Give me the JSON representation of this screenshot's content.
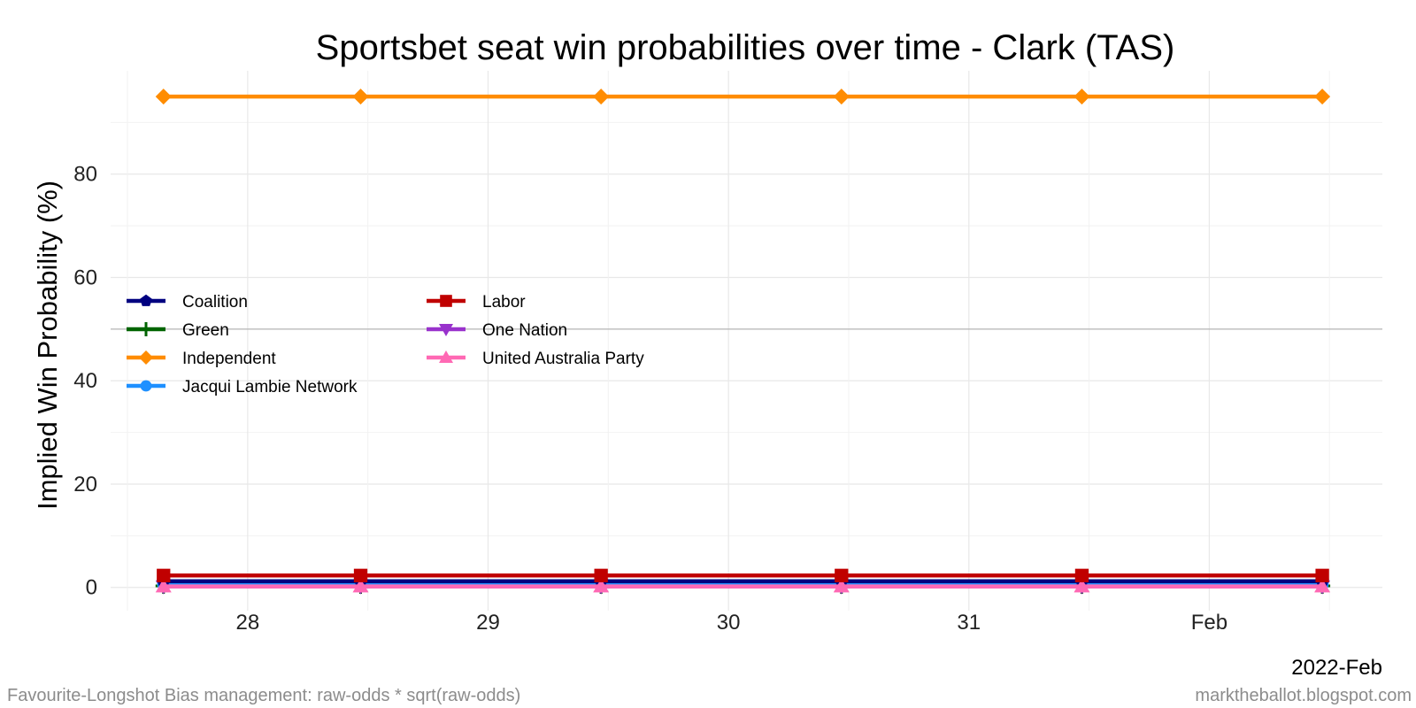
{
  "chart_data": {
    "type": "line",
    "title": "Sportsbet seat win probabilities over time - Clark (TAS)",
    "xlabel": "",
    "ylabel": "Implied Win Probability (%)",
    "x_period_label": "2022-Feb",
    "x_ticks": [
      {
        "day": 28,
        "label": "28"
      },
      {
        "day": 29,
        "label": "29"
      },
      {
        "day": 30,
        "label": "30"
      },
      {
        "day": 31,
        "label": "31"
      },
      {
        "day": 32,
        "label": "Feb"
      }
    ],
    "y_ticks": [
      0,
      20,
      40,
      60,
      80
    ],
    "xlim": [
      27.43,
      32.72
    ],
    "ylim": [
      -4.5,
      100
    ],
    "reference_line": 50,
    "grid": true,
    "legend_position": "middle-left",
    "x": [
      27.65,
      28.47,
      29.47,
      30.47,
      31.47,
      32.47
    ],
    "series": [
      {
        "name": "Coalition",
        "color": "#000080",
        "marker": "pentagon",
        "values": [
          1.2,
          1.2,
          1.2,
          1.2,
          1.2,
          1.2
        ]
      },
      {
        "name": "Green",
        "color": "#006400",
        "marker": "plus",
        "values": [
          0.3,
          0.3,
          0.3,
          0.3,
          0.3,
          0.3
        ]
      },
      {
        "name": "Independent",
        "color": "#ff8c00",
        "marker": "diamond",
        "values": [
          95,
          95,
          95,
          95,
          95,
          95
        ]
      },
      {
        "name": "Jacqui Lambie Network",
        "color": "#1e90ff",
        "marker": "circle",
        "values": [
          0.6,
          0.6,
          0.6,
          0.6,
          0.6,
          0.6
        ]
      },
      {
        "name": "Labor",
        "color": "#c00000",
        "marker": "square",
        "values": [
          2.3,
          2.3,
          2.3,
          2.3,
          2.3,
          2.3
        ]
      },
      {
        "name": "One Nation",
        "color": "#9932cc",
        "marker": "triangle-down",
        "values": [
          0.2,
          0.2,
          0.2,
          0.2,
          0.2,
          0.2
        ]
      },
      {
        "name": "United Australia Party",
        "color": "#ff69b4",
        "marker": "triangle-up",
        "values": [
          0.2,
          0.2,
          0.2,
          0.2,
          0.2,
          0.2
        ]
      }
    ]
  },
  "footer": {
    "left": "Favourite-Longshot Bias management: raw-odds * sqrt(raw-odds)",
    "right": "marktheballot.blogspot.com"
  }
}
